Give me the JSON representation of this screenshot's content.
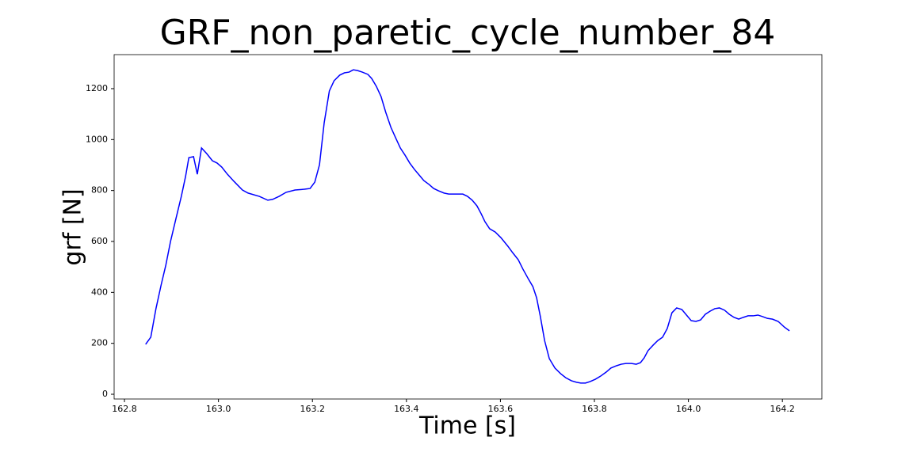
{
  "chart_data": {
    "type": "line",
    "title": "GRF_non_paretic_cycle_number_84",
    "x_label": "Time [s]",
    "y_label": "grf [N]",
    "color": "#0000ff",
    "grid": false,
    "xlim": [
      162.778,
      164.284
    ],
    "ylim": [
      -18.6,
      1333.6
    ],
    "xticks": [
      162.8,
      {
        "value": 163,
        "label": "163.0"
      },
      163.2,
      163.4,
      163.6,
      163.8,
      {
        "value": 164,
        "label": "164.0"
      },
      164.2
    ],
    "yticks": [
      0,
      200,
      400,
      600,
      800,
      1000,
      1200
    ],
    "x": [
      162.845,
      162.856,
      162.867,
      162.878,
      162.888,
      162.898,
      162.91,
      162.921,
      162.93,
      162.937,
      162.947,
      162.955,
      162.964,
      162.975,
      162.987,
      162.997,
      163.007,
      163.019,
      163.033,
      163.051,
      163.063,
      163.087,
      163.105,
      163.115,
      163.129,
      163.144,
      163.163,
      163.183,
      163.195,
      163.205,
      163.215,
      163.225,
      163.236,
      163.246,
      163.258,
      163.268,
      163.278,
      163.287,
      163.296,
      163.306,
      163.318,
      163.326,
      163.336,
      163.346,
      163.356,
      163.367,
      163.377,
      163.387,
      163.397,
      163.407,
      163.417,
      163.427,
      163.437,
      163.448,
      163.458,
      163.468,
      163.48,
      163.49,
      163.5,
      163.51,
      163.52,
      163.53,
      163.54,
      163.55,
      163.559,
      163.567,
      163.577,
      163.589,
      163.601,
      163.616,
      163.626,
      163.638,
      163.648,
      163.66,
      163.669,
      163.677,
      163.685,
      163.694,
      163.704,
      163.716,
      163.728,
      163.739,
      163.751,
      163.762,
      163.771,
      163.781,
      163.791,
      163.802,
      163.813,
      163.825,
      163.835,
      163.847,
      163.857,
      163.867,
      163.879,
      163.889,
      163.898,
      163.906,
      163.914,
      163.925,
      163.935,
      163.945,
      163.955,
      163.965,
      163.975,
      163.986,
      163.996,
      164.006,
      164.016,
      164.026,
      164.036,
      164.046,
      164.056,
      164.066,
      164.077,
      164.087,
      164.097,
      164.107,
      164.117,
      164.127,
      164.138,
      164.148,
      164.158,
      164.168,
      164.179,
      164.191,
      164.204,
      164.215
    ],
    "values": [
      196,
      224,
      336,
      429,
      507,
      600,
      693,
      777,
      855,
      929,
      933,
      864,
      967,
      945,
      917,
      908,
      892,
      864,
      836,
      802,
      790,
      777,
      762,
      765,
      777,
      793,
      802,
      805,
      808,
      833,
      901,
      1066,
      1191,
      1231,
      1253,
      1262,
      1265,
      1274,
      1271,
      1265,
      1256,
      1240,
      1209,
      1169,
      1107,
      1048,
      1007,
      967,
      939,
      908,
      883,
      861,
      839,
      824,
      808,
      799,
      790,
      786,
      786,
      786,
      786,
      777,
      762,
      740,
      709,
      678,
      650,
      637,
      615,
      581,
      556,
      528,
      491,
      451,
      423,
      379,
      305,
      211,
      140,
      103,
      81,
      65,
      53,
      47,
      44,
      44,
      50,
      59,
      71,
      87,
      103,
      112,
      118,
      121,
      121,
      118,
      124,
      143,
      171,
      193,
      211,
      224,
      258,
      320,
      339,
      333,
      311,
      289,
      286,
      292,
      314,
      326,
      336,
      339,
      330,
      314,
      302,
      295,
      302,
      308,
      308,
      311,
      305,
      298,
      295,
      286,
      264,
      249
    ]
  }
}
